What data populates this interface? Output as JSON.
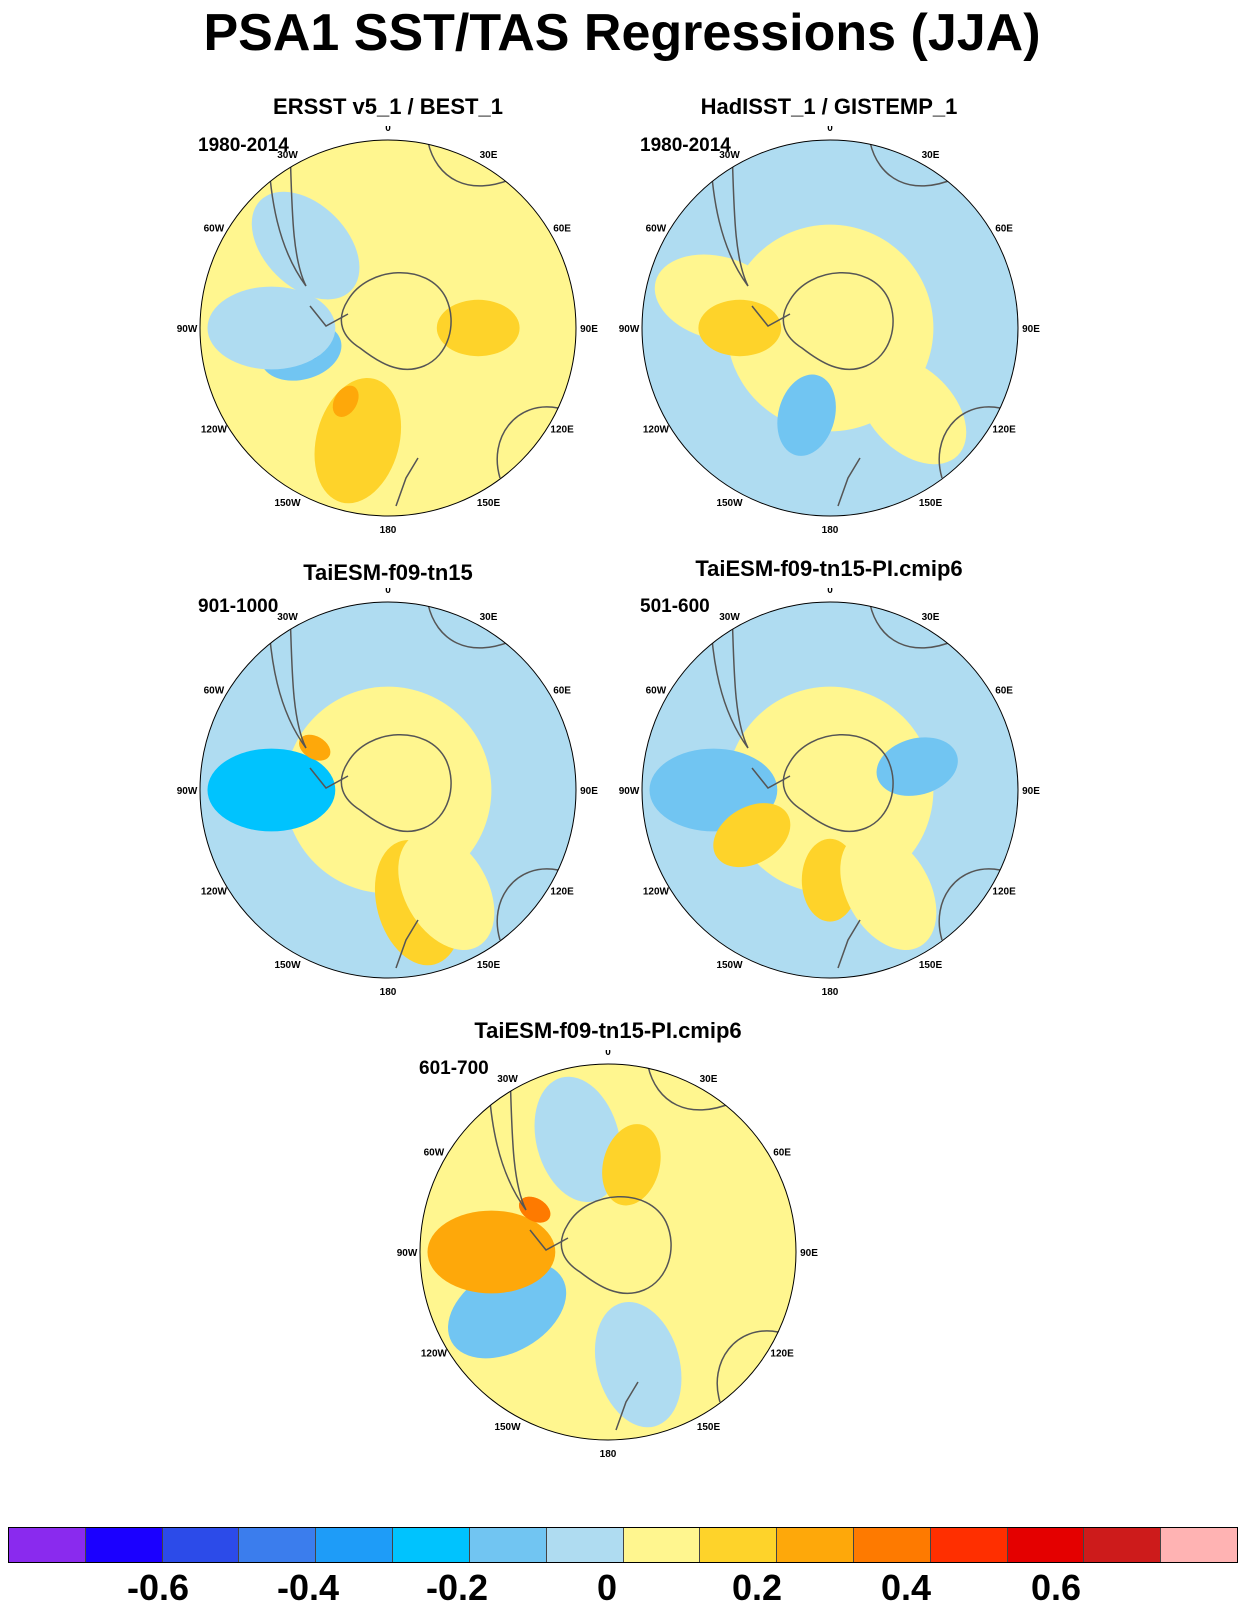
{
  "title": "PSA1 SST/TAS Regressions (JJA)",
  "lon_labels": [
    "0",
    "30E",
    "60E",
    "90E",
    "120E",
    "150E",
    "180",
    "150W",
    "120W",
    "90W",
    "60W",
    "30W"
  ],
  "panels": [
    {
      "title": "ERSST v5_1 / BEST_1",
      "period": "1980-2014",
      "dominant": "mixed warm/cool",
      "features": [
        {
          "color": "#fff68f",
          "kind": "background"
        },
        {
          "color": "#afdcf1",
          "kind": "lobe",
          "sector": "60W-30W"
        },
        {
          "color": "#71c5f2",
          "kind": "blob",
          "sector": "120W-90W"
        },
        {
          "color": "#1ea1f8",
          "kind": "core",
          "sector": "120W-90W"
        },
        {
          "color": "#fed32a",
          "kind": "lobe",
          "sector": "180-150W"
        },
        {
          "color": "#fea80a",
          "kind": "core",
          "sector": "150W"
        },
        {
          "color": "#afdcf1",
          "kind": "lobe",
          "sector": "90W"
        },
        {
          "color": "#fed32a",
          "kind": "blob",
          "sector": "90E"
        }
      ]
    },
    {
      "title": "HadISST_1 / GISTEMP_1",
      "period": "1980-2014",
      "dominant": "cool",
      "features": [
        {
          "color": "#afdcf1",
          "kind": "background"
        },
        {
          "color": "#fff68f",
          "kind": "lobe",
          "sector": "90W-60W"
        },
        {
          "color": "#fff68f",
          "kind": "ring",
          "sector": "all"
        },
        {
          "color": "#71c5f2",
          "kind": "blob",
          "sector": "180-150W"
        },
        {
          "color": "#fff68f",
          "kind": "lobe",
          "sector": "120E-150E"
        },
        {
          "color": "#fed32a",
          "kind": "blob",
          "sector": "90W"
        }
      ]
    },
    {
      "title": "TaiESM-f09-tn15",
      "period": "901-1000",
      "dominant": "mixed warm/cool",
      "features": [
        {
          "color": "#afdcf1",
          "kind": "background"
        },
        {
          "color": "#fff68f",
          "kind": "ring",
          "sector": "all"
        },
        {
          "color": "#1ea1f8",
          "kind": "core",
          "sector": "120W-90W"
        },
        {
          "color": "#00c3fe",
          "kind": "lobe",
          "sector": "90W"
        },
        {
          "color": "#fed32a",
          "kind": "lobe",
          "sector": "180-150E"
        },
        {
          "color": "#fea80a",
          "kind": "core",
          "sector": "60W"
        },
        {
          "color": "#fff68f",
          "kind": "lobe",
          "sector": "120E-180"
        }
      ]
    },
    {
      "title": "TaiESM-f09-tn15-PI.cmip6",
      "period": "501-600",
      "dominant": "mixed warm/cool",
      "features": [
        {
          "color": "#afdcf1",
          "kind": "background"
        },
        {
          "color": "#fff68f",
          "kind": "ring",
          "sector": "all"
        },
        {
          "color": "#71c5f2",
          "kind": "blob",
          "sector": "60E-90E"
        },
        {
          "color": "#71c5f2",
          "kind": "lobe",
          "sector": "90W"
        },
        {
          "color": "#fed32a",
          "kind": "blob",
          "sector": "120W"
        },
        {
          "color": "#fed32a",
          "kind": "blob",
          "sector": "180"
        },
        {
          "color": "#fff68f",
          "kind": "lobe",
          "sector": "120E-180"
        }
      ]
    },
    {
      "title": "TaiESM-f09-tn15-PI.cmip6",
      "period": "601-700",
      "dominant": "mixed warm/cool",
      "features": [
        {
          "color": "#fff68f",
          "kind": "background"
        },
        {
          "color": "#afdcf1",
          "kind": "lobe",
          "sector": "30W-0"
        },
        {
          "color": "#71c5f2",
          "kind": "lobe",
          "sector": "150W-90W"
        },
        {
          "color": "#fea80a",
          "kind": "lobe",
          "sector": "90W"
        },
        {
          "color": "#fea80a",
          "kind": "core",
          "sector": "60W"
        },
        {
          "color": "#fe7a00",
          "kind": "core",
          "sector": "60W"
        },
        {
          "color": "#fed32a",
          "kind": "blob",
          "sector": "0-30E"
        },
        {
          "color": "#afdcf1",
          "kind": "lobe",
          "sector": "150E-180"
        }
      ]
    }
  ],
  "colorbar": {
    "colors": [
      "#8a2aee",
      "#1b00ff",
      "#2c4be9",
      "#3b7ded",
      "#1e9cf8",
      "#00c3fe",
      "#71c5f2",
      "#afdcf1",
      "#fff68f",
      "#fed32a",
      "#fea80a",
      "#fe7a00",
      "#ff2f00",
      "#e40000",
      "#cd1b1b",
      "#ffb3b3"
    ],
    "tick_labels": [
      "-0.6",
      "-0.4",
      "-0.2",
      "0",
      "0.2",
      "0.4",
      "0.6"
    ]
  },
  "continent_color": "#afdcf1",
  "coastline_color": "#555555"
}
